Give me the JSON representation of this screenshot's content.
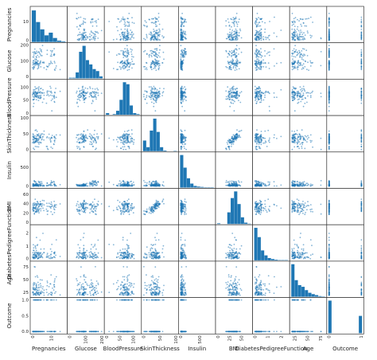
{
  "chart_data": {
    "type": "scatter",
    "title": "",
    "variables": [
      "Pregnancies",
      "Glucose",
      "BloodPressure",
      "SkinThickness",
      "Insulin",
      "BMI",
      "DiabetesPedigreeFunction",
      "Age",
      "Outcome"
    ],
    "row_labels": [
      "Pregnancies",
      "Glucose",
      "BloodPressure",
      "SkinThickness",
      "Insulin",
      "BMI",
      "DiabetesPedigreeFunction",
      "Age",
      "Outcome"
    ],
    "diagonal": "hist",
    "colors": {
      "marks": "#1f77b4",
      "axes": "#333333",
      "text": "#222222"
    },
    "ranges": {
      "Pregnancies": [
        0,
        17
      ],
      "Glucose": [
        0,
        200
      ],
      "BloodPressure": [
        0,
        122
      ],
      "SkinThickness": [
        0,
        100
      ],
      "Insulin": [
        0,
        850
      ],
      "BMI": [
        0,
        68
      ],
      "DiabetesPedigreeFunction": [
        0.05,
        2.45
      ],
      "Age": [
        20,
        82
      ],
      "Outcome": [
        0,
        1
      ]
    },
    "x_ticks": {
      "Pregnancies": [
        "0",
        "10"
      ],
      "Glucose": [
        "0",
        "100",
        "200"
      ],
      "BloodPressure": [
        "0",
        "50",
        "100"
      ],
      "SkinThickness": [
        "0",
        "50",
        "100"
      ],
      "Insulin": [
        "0",
        "500"
      ],
      "BMI": [
        "0",
        "25",
        "50"
      ],
      "DiabetesPedigreeFunction": [
        "0",
        "1",
        "2"
      ],
      "Age": [
        "25",
        "50",
        "75"
      ],
      "Outcome": [
        "0",
        "1"
      ]
    },
    "y_ticks": {
      "Pregnancies": [
        "0",
        "10"
      ],
      "Glucose": [
        "0",
        "100",
        "200"
      ],
      "BloodPressure": [
        "0",
        "50",
        "100"
      ],
      "SkinThickness": [
        "0",
        "50",
        "100"
      ],
      "Insulin": [
        "0",
        "500"
      ],
      "BMI": [
        "0",
        "20",
        "40",
        "60"
      ],
      "DiabetesPedigreeFunction": [
        "0",
        "1",
        "2"
      ],
      "Age": [
        "25",
        "50",
        "75"
      ],
      "Outcome": [
        "0.0",
        "0.5",
        "1.0"
      ]
    },
    "histograms": {
      "Pregnancies": [
        0.95,
        0.6,
        0.38,
        0.2,
        0.28,
        0.12,
        0.04,
        0.02
      ],
      "Glucose": [
        0.02,
        0.02,
        0.18,
        0.8,
        0.98,
        0.55,
        0.42,
        0.28,
        0.22,
        0.06
      ],
      "BloodPressure": [
        0.05,
        0.0,
        0.02,
        0.12,
        0.45,
        0.98,
        0.92,
        0.28,
        0.05,
        0.02
      ],
      "SkinThickness": [
        0.32,
        0.12,
        0.62,
        0.98,
        0.58,
        0.12,
        0.02,
        0.0,
        0.0,
        0.01
      ],
      "Insulin": [
        0.98,
        0.6,
        0.28,
        0.12,
        0.05,
        0.03,
        0.02,
        0.01,
        0.01,
        0.01
      ],
      "BMI": [
        0.02,
        0.0,
        0.0,
        0.35,
        0.78,
        0.98,
        0.6,
        0.2,
        0.04,
        0.01
      ],
      "DiabetesPedigreeFunction": [
        0.98,
        0.7,
        0.3,
        0.15,
        0.07,
        0.04,
        0.02,
        0.01,
        0.01,
        0.01
      ],
      "Age": [
        0.98,
        0.5,
        0.35,
        0.3,
        0.2,
        0.12,
        0.08,
        0.05,
        0.02,
        0.01
      ],
      "Outcome": [
        0.98,
        0,
        0,
        0,
        0,
        0,
        0,
        0,
        0,
        0.52
      ]
    },
    "grid": false,
    "legend": "none"
  }
}
